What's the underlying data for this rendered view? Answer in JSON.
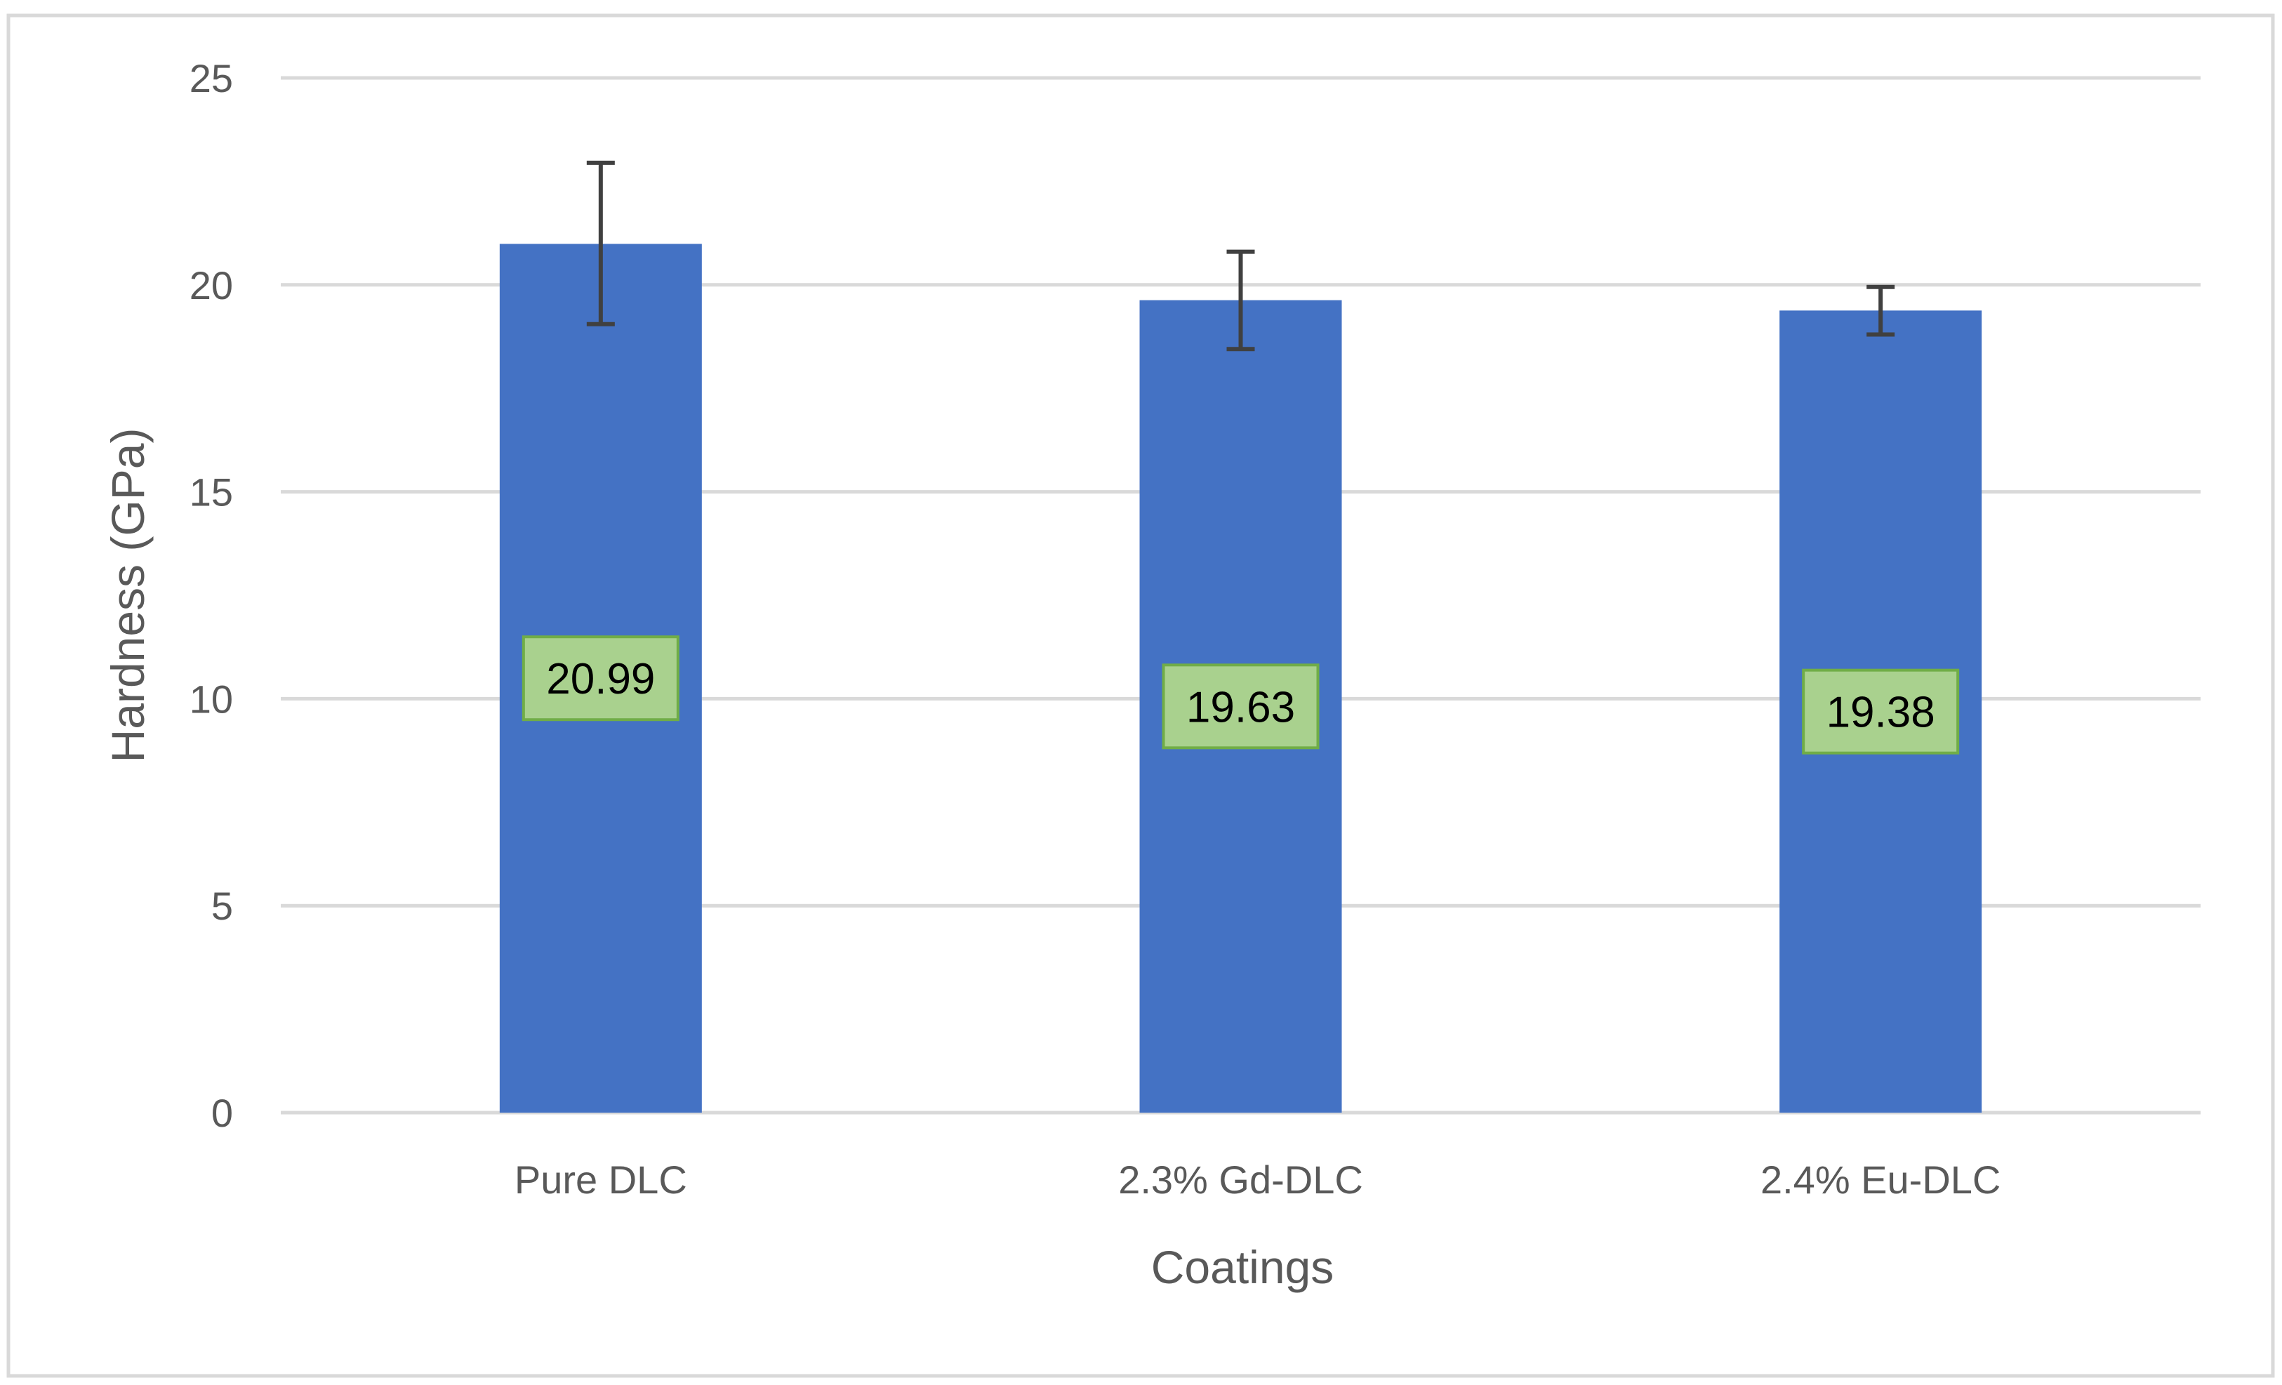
{
  "chart_data": {
    "type": "bar",
    "title": "",
    "xlabel": "Coatings",
    "ylabel": "Hardness (GPa)",
    "ylim": [
      0,
      25
    ],
    "yticks": [
      0,
      5,
      10,
      15,
      20,
      25
    ],
    "grid": true,
    "legend": "none",
    "categories": [
      "Pure DLC",
      "2.3% Gd-DLC",
      "2.4% Eu-DLC"
    ],
    "series": [
      {
        "values": [
          20.99,
          19.63,
          19.38
        ],
        "error_upper": [
          22.95,
          20.8,
          19.95
        ],
        "error_lower": [
          19.05,
          18.45,
          18.8
        ],
        "data_labels": [
          "20.99",
          "19.63",
          "19.38"
        ]
      }
    ],
    "colors": {
      "bar": "#4472C4",
      "label_box": "#A9D18E",
      "label_border": "#70AD47",
      "gridline": "#D9D9D9",
      "error_bar": "#404040",
      "frame": "#D9D9D9"
    }
  }
}
